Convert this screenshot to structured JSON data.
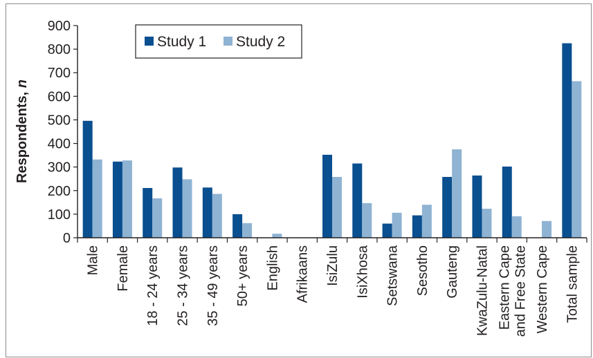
{
  "chart_data": {
    "type": "bar",
    "ylabel": "Respondents, n",
    "ylim": [
      0,
      900
    ],
    "yticks": [
      0,
      100,
      200,
      300,
      400,
      500,
      600,
      700,
      800,
      900
    ],
    "grid": false,
    "legend_position": "top-left",
    "categories": [
      [
        "Male"
      ],
      [
        "Female"
      ],
      [
        "18 - 24 years"
      ],
      [
        "25 - 34 years"
      ],
      [
        "35 - 49 years"
      ],
      [
        "50+ years"
      ],
      [
        "English"
      ],
      [
        "Afrikaans"
      ],
      [
        "IsiZulu"
      ],
      [
        "IsiXhosa"
      ],
      [
        "Setswana"
      ],
      [
        "Sesotho"
      ],
      [
        "Gauteng"
      ],
      [
        "KwaZulu-Natal"
      ],
      [
        "Eastern Cape",
        "and Free State"
      ],
      [
        "Western Cape"
      ],
      [
        "Total sample"
      ]
    ],
    "series": [
      {
        "name": "Study 1",
        "color": "#0a4f8f",
        "values": [
          496,
          323,
          211,
          298,
          213,
          100,
          0,
          0,
          352,
          315,
          60,
          95,
          258,
          264,
          302,
          0,
          825
        ]
      },
      {
        "name": "Study 2",
        "color": "#8fb3d3",
        "values": [
          332,
          328,
          167,
          248,
          186,
          62,
          17,
          0,
          258,
          147,
          106,
          140,
          375,
          123,
          91,
          71,
          664
        ]
      }
    ]
  }
}
